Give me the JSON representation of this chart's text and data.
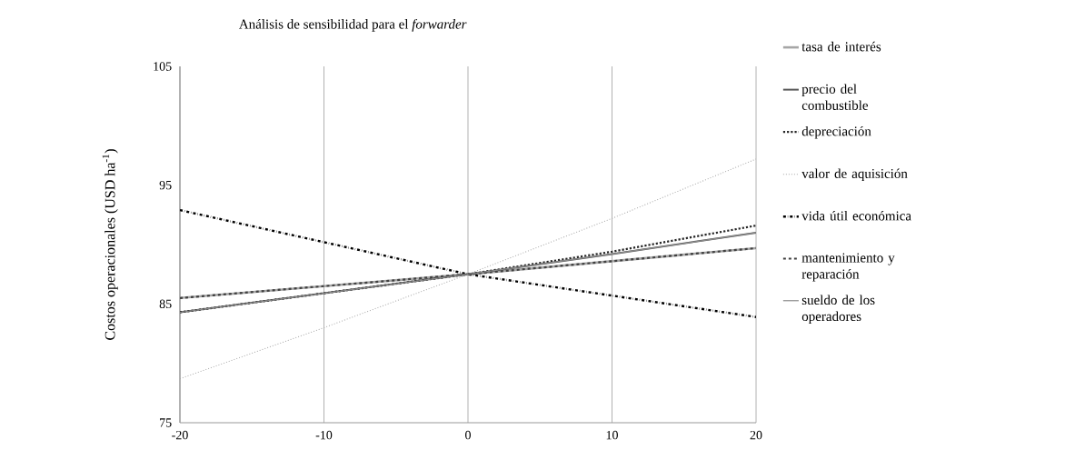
{
  "chart_data": {
    "type": "line",
    "title": "Análisis de sensibilidad para el *forwarder*",
    "ylabel": "Costos operacionales (USD ha$^{-1}$)",
    "x": [
      -20,
      -10,
      0,
      10,
      20
    ],
    "xlim": [
      -20,
      20
    ],
    "xticks": [
      -20,
      -10,
      0,
      10,
      20
    ],
    "ylim": [
      75,
      105
    ],
    "yticks": [
      75,
      85,
      95,
      105
    ],
    "grid": "x",
    "legend": "right",
    "marker": "none",
    "series": [
      {
        "name": "tasa de interés",
        "color": "#a6a6a6",
        "line_style": "solid",
        "values": [
          85.5,
          86.5,
          87.5,
          88.6,
          89.7
        ]
      },
      {
        "name": "precio del combustible",
        "color": "#595959",
        "line_style": "solid",
        "values": [
          84.3,
          85.9,
          87.5,
          89.2,
          91.0
        ]
      },
      {
        "name": "depreciación",
        "color": "#262626",
        "line_style": "dotted",
        "values": [
          84.3,
          85.9,
          87.5,
          89.4,
          91.6
        ]
      },
      {
        "name": "valor de aquisición",
        "color": "#a6a6a6",
        "line_style": "dotted",
        "values": [
          78.7,
          83.0,
          87.5,
          92.2,
          97.2
        ]
      },
      {
        "name": "vida útil económica",
        "color": "#000000",
        "line_style": "dashdot",
        "values": [
          92.9,
          90.2,
          87.5,
          85.7,
          83.9
        ]
      },
      {
        "name": "mantenimiento y reparación",
        "color": "#404040",
        "line_style": "dashed",
        "values": [
          85.5,
          86.5,
          87.5,
          88.6,
          89.7
        ]
      },
      {
        "name": "sueldo de los operadores",
        "color": "#8c8c8c",
        "line_style": "solid",
        "values": [
          84.3,
          85.9,
          87.5,
          89.2,
          91.0
        ]
      }
    ]
  }
}
